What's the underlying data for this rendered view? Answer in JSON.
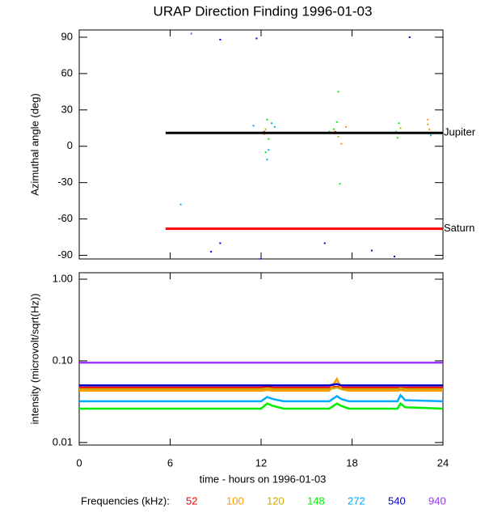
{
  "chart_data": [
    {
      "type": "scatter",
      "title": "URAP Direction Finding  1996-01-03",
      "y_label": "Azimuthal angle (deg)",
      "xlim": [
        0,
        24
      ],
      "xticks": [
        0,
        6,
        12,
        18,
        24
      ],
      "ylim": [
        -93,
        96
      ],
      "yticks": [
        -90,
        -60,
        -30,
        0,
        30,
        60,
        90
      ],
      "series": [
        {
          "color": "#ff0000",
          "x": [
            12.2,
            16.9
          ],
          "values": [
            12,
            12
          ]
        },
        {
          "color": "#ff9900",
          "x": [
            12.2,
            17.3,
            17.6,
            23.0,
            23.1
          ],
          "values": [
            10,
            2,
            16,
            22,
            14
          ]
        },
        {
          "color": "#ccaa00",
          "x": [
            12.3,
            17.1,
            21.2,
            23.0
          ],
          "values": [
            14,
            8,
            15,
            18
          ]
        },
        {
          "color": "#00ee00",
          "x": [
            12.4,
            12.5,
            12.3,
            17.1,
            17.2,
            16.8,
            17.0,
            16.5,
            20.9,
            21.0,
            21.1,
            12.6
          ],
          "values": [
            22,
            6,
            -5,
            45,
            -31,
            14,
            20,
            12,
            12,
            7,
            19,
            11
          ]
        },
        {
          "color": "#00aaff",
          "x": [
            11.5,
            12.9,
            12.7,
            12.4,
            12.5,
            6.7,
            23.2
          ],
          "values": [
            17,
            16,
            19,
            -11,
            -3,
            -48,
            9
          ]
        },
        {
          "color": "#0000cc",
          "x": [
            9.3,
            11.7,
            21.8,
            8.7,
            9.3,
            16.2,
            19.3,
            20.8
          ],
          "values": [
            88,
            89,
            90,
            -87,
            -80,
            -80,
            -86,
            -91
          ]
        },
        {
          "color": "#9933ff",
          "x": [
            7.4,
            11.9
          ],
          "values": [
            93,
            -93
          ]
        }
      ],
      "reference_lines": [
        {
          "label": "Jupiter",
          "value": 11,
          "x": [
            5.7,
            24
          ],
          "color": "#000000"
        },
        {
          "label": "Saturn",
          "value": -68,
          "x": [
            5.7,
            24
          ],
          "color": "#ff0000"
        }
      ]
    },
    {
      "type": "line",
      "x_label": "time - hours on 1996-01-03",
      "y_label": "intensity (microvolt/sqrt(Hz))",
      "log_y": true,
      "xlim": [
        0,
        24
      ],
      "xticks": [
        0,
        6,
        12,
        18,
        24
      ],
      "ylim": [
        0.0093,
        1.2
      ],
      "yticks": [
        {
          "value": 0.01,
          "label": "0.01"
        },
        {
          "value": 0.1,
          "label": "0.10"
        },
        {
          "value": 1,
          "label": "1.00"
        }
      ],
      "legend_title": "Frequencies (kHz):",
      "x": [
        0,
        3,
        6,
        9,
        12,
        12.4,
        12.8,
        13.5,
        16.5,
        17,
        17.3,
        17.8,
        21,
        21.2,
        21.5,
        24
      ],
      "series": [
        {
          "name": "52",
          "color": "#ff0000",
          "values": [
            0.047,
            0.047,
            0.047,
            0.047,
            0.047,
            0.048,
            0.047,
            0.047,
            0.047,
            0.048,
            0.047,
            0.047,
            0.047,
            0.047,
            0.047,
            0.047
          ]
        },
        {
          "name": "100",
          "color": "#ff9900",
          "values": [
            0.043,
            0.043,
            0.043,
            0.043,
            0.043,
            0.044,
            0.043,
            0.043,
            0.043,
            0.06,
            0.045,
            0.043,
            0.043,
            0.044,
            0.043,
            0.043
          ]
        },
        {
          "name": "120",
          "color": "#ccaa00",
          "values": [
            0.045,
            0.045,
            0.045,
            0.045,
            0.045,
            0.046,
            0.045,
            0.045,
            0.045,
            0.047,
            0.045,
            0.045,
            0.045,
            0.046,
            0.045,
            0.045
          ]
        },
        {
          "name": "148",
          "color": "#00ee00",
          "values": [
            0.026,
            0.026,
            0.026,
            0.026,
            0.026,
            0.03,
            0.028,
            0.026,
            0.026,
            0.03,
            0.028,
            0.026,
            0.026,
            0.03,
            0.027,
            0.026
          ]
        },
        {
          "name": "272",
          "color": "#00aaff",
          "values": [
            0.032,
            0.032,
            0.032,
            0.032,
            0.032,
            0.036,
            0.034,
            0.032,
            0.032,
            0.037,
            0.034,
            0.032,
            0.032,
            0.038,
            0.033,
            0.032
          ]
        },
        {
          "name": "540",
          "color": "#0000cc",
          "values": [
            0.05,
            0.05,
            0.05,
            0.05,
            0.05,
            0.05,
            0.05,
            0.05,
            0.05,
            0.052,
            0.05,
            0.05,
            0.05,
            0.05,
            0.05,
            0.05
          ]
        },
        {
          "name": "940",
          "color": "#9933ff",
          "values": [
            0.095,
            0.095,
            0.095,
            0.095,
            0.095,
            0.095,
            0.095,
            0.095,
            0.095,
            0.095,
            0.095,
            0.095,
            0.095,
            0.095,
            0.095,
            0.095
          ]
        }
      ]
    }
  ]
}
